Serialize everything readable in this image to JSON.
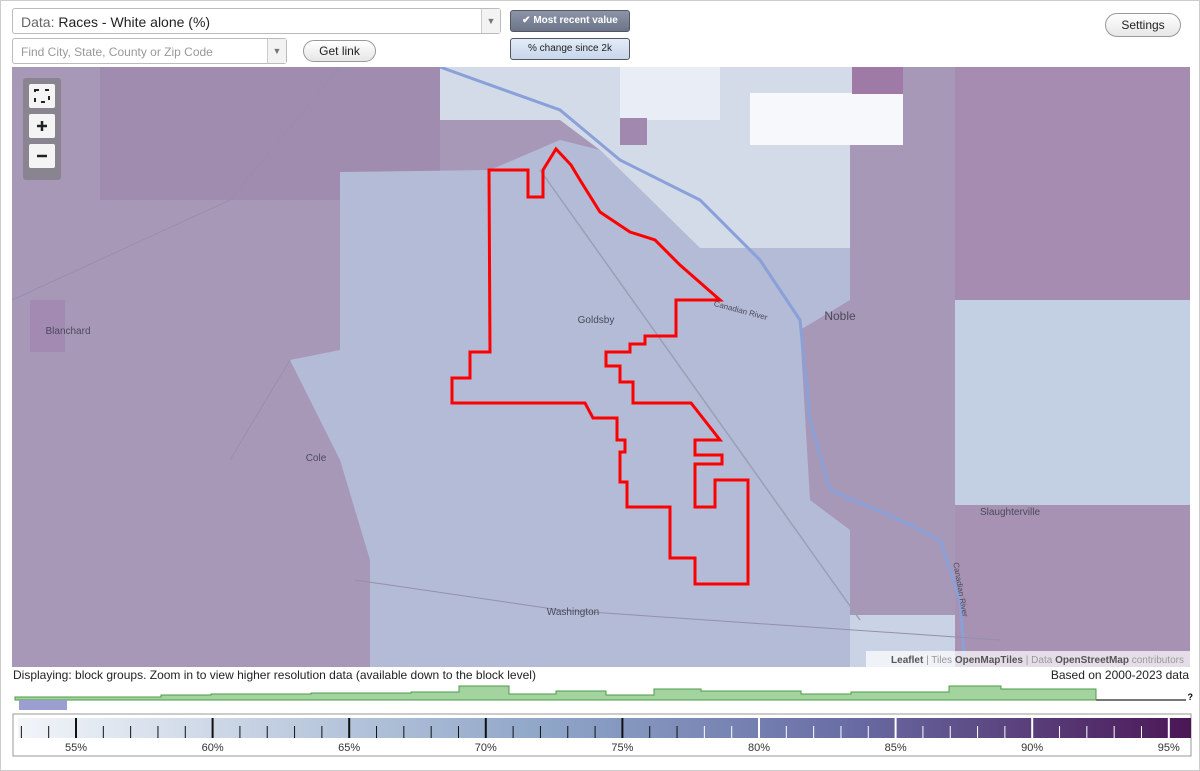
{
  "toolbar": {
    "data_label": "Data:",
    "data_value": "Races - White alone (%)",
    "search_placeholder": "Find City, State, County or Zip Code",
    "get_link": "Get link",
    "most_recent": "Most recent value",
    "pct_change": "% change since 2k",
    "settings": "Settings"
  },
  "map": {
    "places": [
      "Blanchard",
      "Goldsby",
      "Noble",
      "Cole",
      "Washington",
      "Slaughterville"
    ],
    "rivers": [
      "Canadian River",
      "Canadian River"
    ],
    "attribution": {
      "leaflet": "Leaflet",
      "sep1": "|",
      "tiles": "Tiles",
      "tiles_src": "OpenMapTiles",
      "sep2": "|",
      "data": "Data",
      "data_src": "OpenStreetMap",
      "contrib": "contributors"
    }
  },
  "status": {
    "displaying": "Displaying: block groups. Zoom in to view higher resolution data (available down to the block level)",
    "based_on": "Based on 2000-2023 data",
    "help": "?"
  },
  "legend": {
    "ticks": [
      "55%",
      "60%",
      "65%",
      "70%",
      "75%",
      "80%",
      "85%",
      "90%",
      "95%"
    ]
  }
}
